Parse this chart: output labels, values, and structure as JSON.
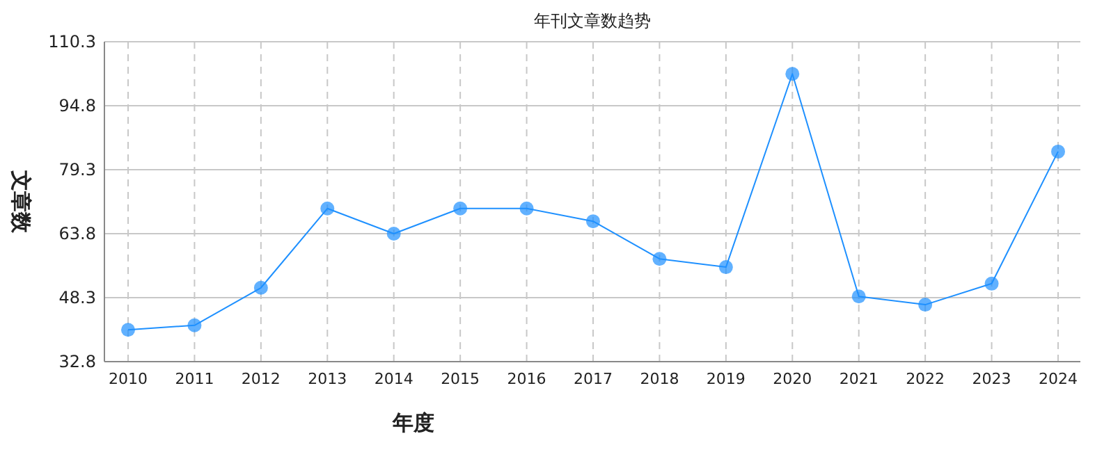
{
  "chart_data": {
    "type": "line",
    "title": "年刊文章数趋势",
    "xlabel": "年度",
    "ylabel": "文章数",
    "categories": [
      "2010",
      "2011",
      "2012",
      "2013",
      "2014",
      "2015",
      "2016",
      "2017",
      "2018",
      "2019",
      "2020",
      "2021",
      "2022",
      "2023",
      "2024"
    ],
    "series": [
      {
        "color": "#1e90ff",
        "values": [
          40.5,
          41.6,
          50.7,
          69.9,
          63.8,
          69.9,
          69.9,
          66.8,
          57.7,
          55.7,
          102.5,
          48.6,
          46.6,
          51.7,
          83.7
        ]
      }
    ],
    "ylim": [
      32.8,
      110.3
    ],
    "yticks": [
      32.8,
      48.3,
      63.8,
      79.3,
      94.8,
      110.3
    ],
    "grid": true,
    "marker": "circle",
    "line_style": "solid"
  }
}
